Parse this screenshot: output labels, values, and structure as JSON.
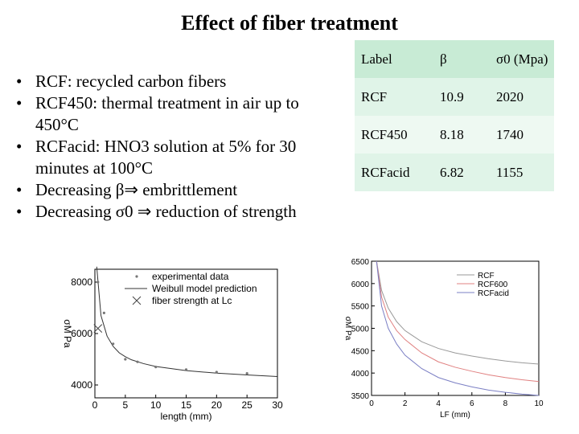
{
  "title": "Effect of fiber treatment",
  "bullets": [
    "RCF: recycled carbon fibers",
    "RCF450: thermal treatment in air up to 450°C",
    "RCFacid: HNO3 solution at 5% for 30 minutes at 100°C",
    "Decreasing β⇒ embrittlement",
    "Decreasing σ0 ⇒ reduction of strength"
  ],
  "table": {
    "headers": [
      "Label",
      "β",
      "σ0 (Mpa)"
    ],
    "rows": [
      [
        "RCF",
        "10.9",
        "2020"
      ],
      [
        "RCF450",
        "8.18",
        "1740"
      ],
      [
        "RCFacid",
        "6.82",
        "1155"
      ]
    ]
  },
  "chart_data": [
    {
      "type": "scatter",
      "xlabel": "length (mm)",
      "ylabel": "σM Pa",
      "xlim": [
        0,
        30
      ],
      "ylim": [
        3500,
        8500
      ],
      "x_ticks": [
        "0",
        "5",
        "10",
        "15",
        "20",
        "25",
        "30"
      ],
      "y_ticks": [
        "4000",
        "6000",
        "8000"
      ],
      "legend": [
        "experimental data",
        "Weibull model prediction",
        "fiber strength at Lc"
      ],
      "series": [
        {
          "name": "experimental data",
          "x": [
            0.5,
            1.5,
            3,
            5,
            7,
            10,
            15,
            20,
            25
          ],
          "y": [
            8000,
            6800,
            5600,
            5000,
            4900,
            4700,
            4600,
            4500,
            4450
          ]
        },
        {
          "name": "Weibull model prediction",
          "x": [
            0.3,
            1,
            2,
            3,
            4,
            5,
            6,
            8,
            10,
            15,
            20,
            25,
            30
          ],
          "y": [
            8600,
            6700,
            5900,
            5500,
            5250,
            5100,
            4980,
            4830,
            4720,
            4560,
            4460,
            4390,
            4330
          ]
        },
        {
          "name": "fiber strength at Lc",
          "x": [
            0.5
          ],
          "y": [
            6200
          ]
        }
      ]
    },
    {
      "type": "line",
      "xlabel": "LF (mm)",
      "ylabel": "σM Pa",
      "xlim": [
        0,
        10
      ],
      "ylim": [
        3500,
        6500
      ],
      "x_ticks": [
        "0",
        "2",
        "4",
        "6",
        "8",
        "10"
      ],
      "y_ticks": [
        "3500",
        "4000",
        "4500",
        "5000",
        "5500",
        "6000",
        "6500"
      ],
      "legend": [
        "RCF",
        "RCF600",
        "RCFacid"
      ],
      "colors": {
        "RCF": "#999999",
        "RCF600": "#e08080",
        "RCFacid": "#7b7fc4"
      },
      "series": [
        {
          "name": "RCF",
          "x": [
            0.3,
            0.6,
            1,
            1.5,
            2,
            3,
            4,
            5,
            6,
            7,
            8,
            9,
            10
          ],
          "y": [
            6500,
            5850,
            5450,
            5150,
            4950,
            4700,
            4550,
            4450,
            4380,
            4320,
            4270,
            4230,
            4200
          ]
        },
        {
          "name": "RCF600",
          "x": [
            0.3,
            0.6,
            1,
            1.5,
            2,
            3,
            4,
            5,
            6,
            7,
            8,
            9,
            10
          ],
          "y": [
            6500,
            5700,
            5250,
            4950,
            4750,
            4450,
            4250,
            4130,
            4040,
            3960,
            3900,
            3850,
            3810
          ]
        },
        {
          "name": "RCFacid",
          "x": [
            0.3,
            0.6,
            1,
            1.5,
            2,
            3,
            4,
            5,
            6,
            7,
            8,
            9,
            10
          ],
          "y": [
            6500,
            5500,
            5000,
            4650,
            4400,
            4100,
            3900,
            3780,
            3690,
            3620,
            3570,
            3530,
            3500
          ]
        }
      ]
    }
  ]
}
